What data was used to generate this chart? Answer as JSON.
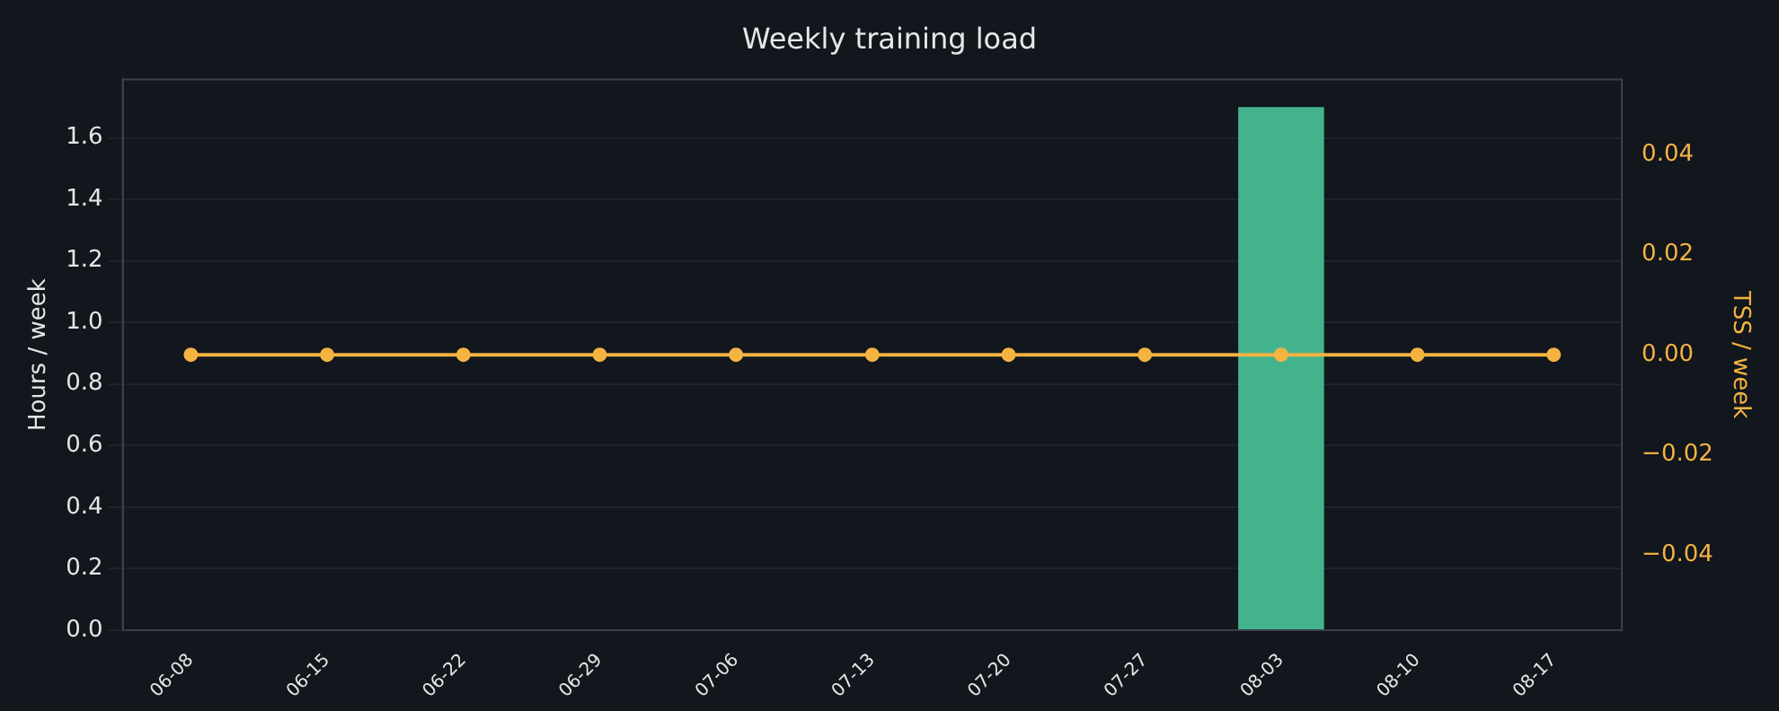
{
  "chart_data": {
    "type": "bar",
    "title": "Weekly training load",
    "ylabel": "Hours / week",
    "y2label": "TSS / week",
    "categories": [
      "06-08",
      "06-15",
      "06-22",
      "06-29",
      "07-06",
      "07-13",
      "07-20",
      "07-27",
      "08-03",
      "08-10",
      "08-17"
    ],
    "series": [
      {
        "color": "#43b38e",
        "values": [
          0,
          0,
          0,
          0,
          0,
          0,
          0,
          0,
          1.7,
          0,
          0
        ]
      },
      {
        "type": "line",
        "axis": "y2",
        "color": "#f5b342",
        "values": [
          0,
          0,
          0,
          0,
          0,
          0,
          0,
          0,
          0,
          0,
          0
        ]
      }
    ],
    "ylim": [
      0,
      1.79
    ],
    "yticks": [
      {
        "value": 0,
        "label": "0.0"
      },
      0.2,
      0.4,
      0.6,
      0.8,
      {
        "value": 1,
        "label": "1.0"
      },
      1.2,
      1.4,
      1.6
    ],
    "y2lim": [
      -0.055,
      0.055
    ],
    "y2ticks": [
      -0.04,
      -0.02,
      {
        "value": 0,
        "label": "0.00"
      },
      0.02,
      0.04
    ],
    "grid": "y",
    "legend": false,
    "marker": "circle",
    "line_style": "solid"
  }
}
